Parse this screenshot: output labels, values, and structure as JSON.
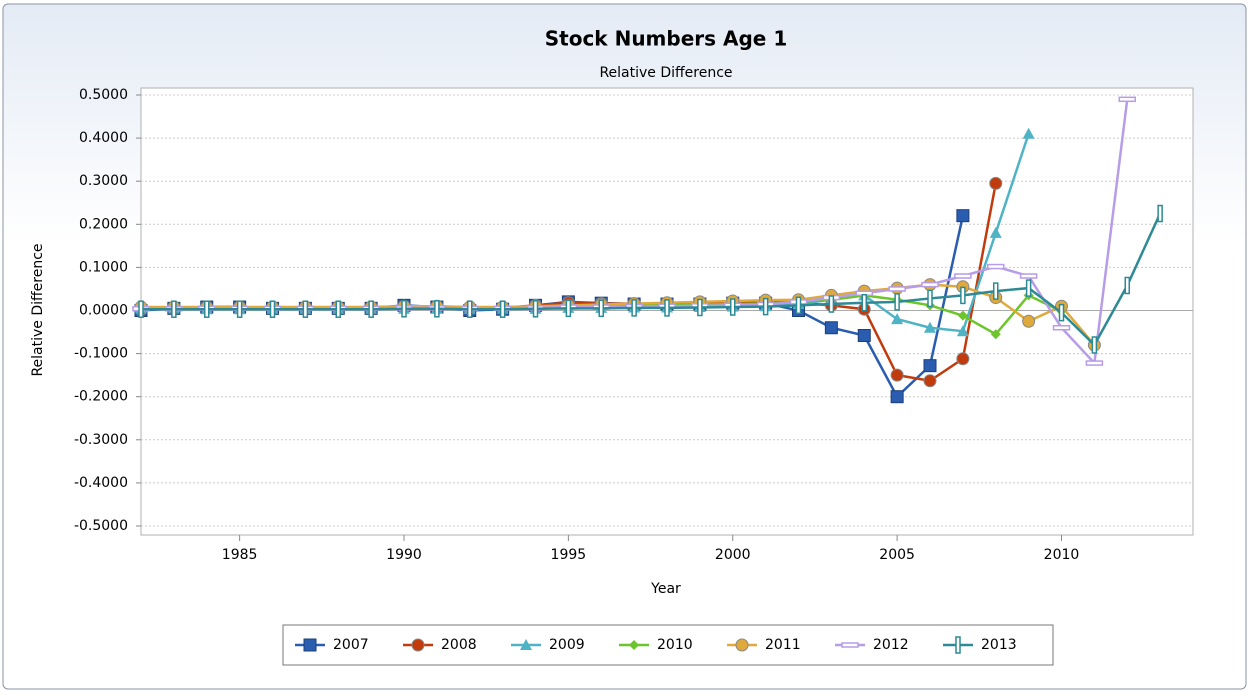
{
  "chart_data": {
    "type": "line",
    "title": "Stock Numbers Age 1",
    "subtitle": "Relative Difference",
    "x_label": "Year",
    "y_label": "Relative Difference",
    "x": [
      1982,
      1983,
      1984,
      1985,
      1986,
      1987,
      1988,
      1989,
      1990,
      1991,
      1992,
      1993,
      1994,
      1995,
      1996,
      1997,
      1998,
      1999,
      2000,
      2001,
      2002,
      2003,
      2004,
      2005,
      2006,
      2007,
      2008,
      2009,
      2010,
      2011,
      2012,
      2013
    ],
    "xlim": [
      1982,
      2014
    ],
    "xticks": [
      1985,
      1990,
      1995,
      2000,
      2005,
      2010
    ],
    "ylim": [
      -0.5,
      0.5
    ],
    "yticks": [
      {
        "value": -0.5,
        "label": "-0.5000"
      },
      {
        "value": -0.4,
        "label": "-0.4000"
      },
      {
        "value": -0.3,
        "label": "-0.3000"
      },
      {
        "value": -0.2,
        "label": "-0.2000"
      },
      {
        "value": -0.1,
        "label": "-0.1000"
      },
      {
        "value": 0,
        "label": "0.0000"
      },
      {
        "value": 0.1,
        "label": "0.1000"
      },
      {
        "value": 0.2,
        "label": "0.2000"
      },
      {
        "value": 0.3,
        "label": "0.3000"
      },
      {
        "value": 0.4,
        "label": "0.4000"
      },
      {
        "value": 0.5,
        "label": "0.5000"
      }
    ],
    "grid": true,
    "legend": "bottom",
    "series": [
      {
        "name": "2007",
        "color": "#2a5db0",
        "marker": "square",
        "values": [
          0.0,
          0.005,
          0.008,
          0.008,
          0.005,
          0.005,
          0.005,
          0.005,
          0.012,
          0.008,
          0.0,
          0.003,
          0.012,
          0.02,
          0.017,
          0.015,
          0.015,
          0.015,
          0.017,
          0.017,
          0.0,
          -0.04,
          -0.058,
          -0.2,
          -0.128,
          0.22,
          null,
          null,
          null,
          null,
          null,
          null
        ]
      },
      {
        "name": "2008",
        "color": "#c23b0c",
        "marker": "circle",
        "values": [
          0.003,
          0.006,
          0.008,
          0.008,
          0.006,
          0.006,
          0.006,
          0.006,
          0.01,
          0.008,
          0.005,
          0.006,
          0.012,
          0.018,
          0.016,
          0.016,
          0.016,
          0.018,
          0.02,
          0.02,
          0.018,
          0.012,
          0.003,
          -0.15,
          -0.163,
          -0.112,
          0.295,
          null,
          null,
          null,
          null,
          null
        ]
      },
      {
        "name": "2009",
        "color": "#4fb3c6",
        "marker": "triangle",
        "values": [
          0.005,
          0.005,
          0.003,
          0.003,
          0.004,
          0.004,
          0.004,
          0.004,
          0.004,
          0.004,
          0.004,
          0.004,
          0.004,
          0.006,
          0.006,
          0.007,
          0.007,
          0.008,
          0.009,
          0.01,
          0.015,
          0.025,
          0.035,
          -0.02,
          -0.04,
          -0.048,
          0.18,
          0.41,
          null,
          null,
          null,
          null
        ]
      },
      {
        "name": "2010",
        "color": "#6cc52a",
        "marker": "diamond",
        "values": [
          0.005,
          0.006,
          0.006,
          0.006,
          0.006,
          0.006,
          0.006,
          0.006,
          0.008,
          0.008,
          0.006,
          0.006,
          0.008,
          0.01,
          0.01,
          0.012,
          0.012,
          0.014,
          0.015,
          0.016,
          0.02,
          0.025,
          0.035,
          0.025,
          0.012,
          -0.012,
          -0.055,
          0.035,
          -0.002,
          null,
          null,
          null
        ]
      },
      {
        "name": "2011",
        "color": "#e0a93b",
        "marker": "circle",
        "values": [
          0.008,
          0.008,
          0.008,
          0.008,
          0.008,
          0.008,
          0.008,
          0.008,
          0.01,
          0.01,
          0.008,
          0.008,
          0.01,
          0.012,
          0.014,
          0.016,
          0.018,
          0.02,
          0.022,
          0.024,
          0.025,
          0.035,
          0.045,
          0.052,
          0.06,
          0.055,
          0.03,
          -0.025,
          0.01,
          -0.08,
          null,
          null
        ]
      },
      {
        "name": "2012",
        "color": "#b79ce8",
        "marker": "dash",
        "values": [
          0.004,
          0.004,
          0.005,
          0.005,
          0.005,
          0.005,
          0.005,
          0.005,
          0.006,
          0.006,
          0.005,
          0.005,
          0.006,
          0.008,
          0.008,
          0.009,
          0.01,
          0.011,
          0.012,
          0.014,
          0.02,
          0.03,
          0.04,
          0.05,
          0.06,
          0.08,
          0.102,
          0.08,
          -0.04,
          -0.122,
          0.49,
          null
        ]
      },
      {
        "name": "2013",
        "color": "#2d8a94",
        "marker": "bar",
        "values": [
          0.003,
          0.003,
          0.003,
          0.003,
          0.003,
          0.003,
          0.003,
          0.003,
          0.004,
          0.004,
          0.003,
          0.003,
          0.004,
          0.005,
          0.005,
          0.006,
          0.006,
          0.007,
          0.008,
          0.009,
          0.012,
          0.015,
          0.018,
          0.02,
          0.028,
          0.035,
          0.045,
          0.052,
          -0.005,
          -0.08,
          0.058,
          0.225
        ]
      }
    ]
  }
}
